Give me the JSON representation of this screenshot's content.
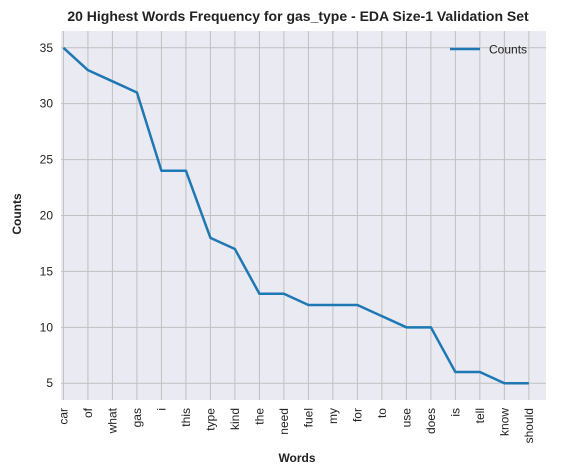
{
  "chart_data": {
    "type": "line",
    "title": "20 Highest Words Frequency for gas_type - EDA Size-1 Validation Set",
    "xlabel": "Words",
    "ylabel": "Counts",
    "categories": [
      "car",
      "of",
      "what",
      "gas",
      "i",
      "this",
      "type",
      "kind",
      "the",
      "need",
      "fuel",
      "my",
      "for",
      "to",
      "use",
      "does",
      "is",
      "tell",
      "know",
      "should"
    ],
    "series": [
      {
        "name": "Counts",
        "values": [
          35,
          33,
          32,
          31,
          24,
          24,
          18,
          17,
          13,
          13,
          12,
          12,
          12,
          11,
          10,
          10,
          6,
          6,
          5,
          5
        ]
      }
    ],
    "ylim": [
      3.5,
      36.5
    ],
    "yticks": [
      5,
      10,
      15,
      20,
      25,
      30,
      35
    ],
    "grid": true,
    "legend": "top-right",
    "colors": {
      "line": "#1f77b4",
      "plot_bg": "#eaeaf2",
      "grid": "#c0c0c0"
    }
  }
}
